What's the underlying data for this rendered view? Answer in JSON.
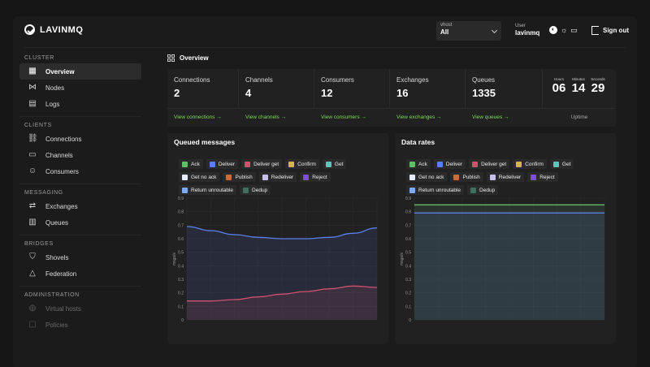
{
  "app": {
    "name": "LAVINMQ"
  },
  "vhost": {
    "label": "vhost",
    "value": "All"
  },
  "user": {
    "label": "User",
    "value": "lavinmq"
  },
  "signout": {
    "label": "Sign out"
  },
  "sidebar": {
    "sections": [
      {
        "title": "CLUSTER",
        "items": [
          {
            "label": "Overview",
            "icon": "grid-icon",
            "glyph": "▦",
            "active": true
          },
          {
            "label": "Nodes",
            "icon": "share-nodes-icon",
            "glyph": "⋈"
          },
          {
            "label": "Logs",
            "icon": "document-icon",
            "glyph": "▤"
          }
        ]
      },
      {
        "title": "CLIENTS",
        "items": [
          {
            "label": "Connections",
            "icon": "link-icon",
            "glyph": "⛓"
          },
          {
            "label": "Channels",
            "icon": "tv-icon",
            "glyph": "▭"
          },
          {
            "label": "Consumers",
            "icon": "smiley-icon",
            "glyph": "☺"
          }
        ]
      },
      {
        "title": "MESSAGING",
        "items": [
          {
            "label": "Exchanges",
            "icon": "arrows-exchange-icon",
            "glyph": "⇄"
          },
          {
            "label": "Queues",
            "icon": "queue-bars-icon",
            "glyph": "▥"
          }
        ]
      },
      {
        "title": "BRIDGES",
        "items": [
          {
            "label": "Shovels",
            "icon": "shield-icon",
            "glyph": "⛉"
          },
          {
            "label": "Federation",
            "icon": "triangle-icon",
            "glyph": "△"
          }
        ]
      },
      {
        "title": "ADMINISTRATION",
        "items": [
          {
            "label": "Virtual hosts",
            "icon": "globe-icon",
            "glyph": "◍",
            "dim": true
          },
          {
            "label": "Policies",
            "icon": "policy-icon",
            "glyph": "▢",
            "dim": true
          }
        ]
      }
    ]
  },
  "page": {
    "title": "Overview"
  },
  "stats": [
    {
      "name": "Connections",
      "value": "2",
      "link": "View connections →"
    },
    {
      "name": "Channels",
      "value": "4",
      "link": "View channels →"
    },
    {
      "name": "Consumers",
      "value": "12",
      "link": "View consumers →"
    },
    {
      "name": "Exchanges",
      "value": "16",
      "link": "View exchanges →"
    },
    {
      "name": "Queues",
      "value": "1335",
      "link": "View queues →"
    }
  ],
  "uptime": {
    "hours_label": "Hours",
    "hours": "06",
    "minutes_label": "Minutes",
    "minutes": "14",
    "seconds_label": "Seconds",
    "seconds": "29",
    "label": "Uptime"
  },
  "legend": [
    {
      "name": "Ack",
      "color": "#5fbf6a"
    },
    {
      "name": "Deliver",
      "color": "#5b7ff0"
    },
    {
      "name": "Deliver get",
      "color": "#d0506e"
    },
    {
      "name": "Confirm",
      "color": "#d9b44a"
    },
    {
      "name": "Get",
      "color": "#5fc3b8"
    },
    {
      "name": "Get no ack",
      "color": "#e6ecf5"
    },
    {
      "name": "Publish",
      "color": "#c0703a"
    },
    {
      "name": "Redeliver",
      "color": "#c7c0e8"
    },
    {
      "name": "Reject",
      "color": "#7a4fe0"
    },
    {
      "name": "Return unroutable",
      "color": "#7fa8f0"
    },
    {
      "name": "Dedup",
      "color": "#3f6e5c"
    }
  ],
  "chart_data": [
    {
      "type": "line",
      "title": "Queued messages",
      "ylabel": "msgs/s",
      "ylim": [
        0,
        0.9
      ],
      "yticks": [
        "0",
        "0.1",
        "0.2",
        "0.3",
        "0.4",
        "0.5",
        "0.6",
        "0.7",
        "0.8",
        "0.9"
      ],
      "series": [
        {
          "name": "Deliver",
          "color": "#5b7ff0",
          "values": [
            0.69,
            0.66,
            0.63,
            0.61,
            0.6,
            0.6,
            0.61,
            0.64,
            0.68
          ]
        },
        {
          "name": "Deliver get",
          "color": "#d0506e",
          "values": [
            0.14,
            0.14,
            0.15,
            0.17,
            0.19,
            0.21,
            0.23,
            0.25,
            0.24
          ]
        }
      ],
      "grid": true
    },
    {
      "type": "line",
      "title": "Data rates",
      "ylabel": "msgs/s",
      "ylim": [
        0,
        0.9
      ],
      "yticks": [
        "0",
        "0.1",
        "0.2",
        "0.3",
        "0.4",
        "0.5",
        "0.6",
        "0.7",
        "0.8",
        "0.9"
      ],
      "series": [
        {
          "name": "Ack",
          "color": "#5fbf6a",
          "values": [
            0.85,
            0.85,
            0.85,
            0.85,
            0.85,
            0.85,
            0.85,
            0.85,
            0.85
          ]
        },
        {
          "name": "Deliver",
          "color": "#5b7ff0",
          "values": [
            0.79,
            0.79,
            0.79,
            0.79,
            0.79,
            0.79,
            0.79,
            0.79,
            0.79
          ]
        }
      ],
      "grid": true
    }
  ]
}
